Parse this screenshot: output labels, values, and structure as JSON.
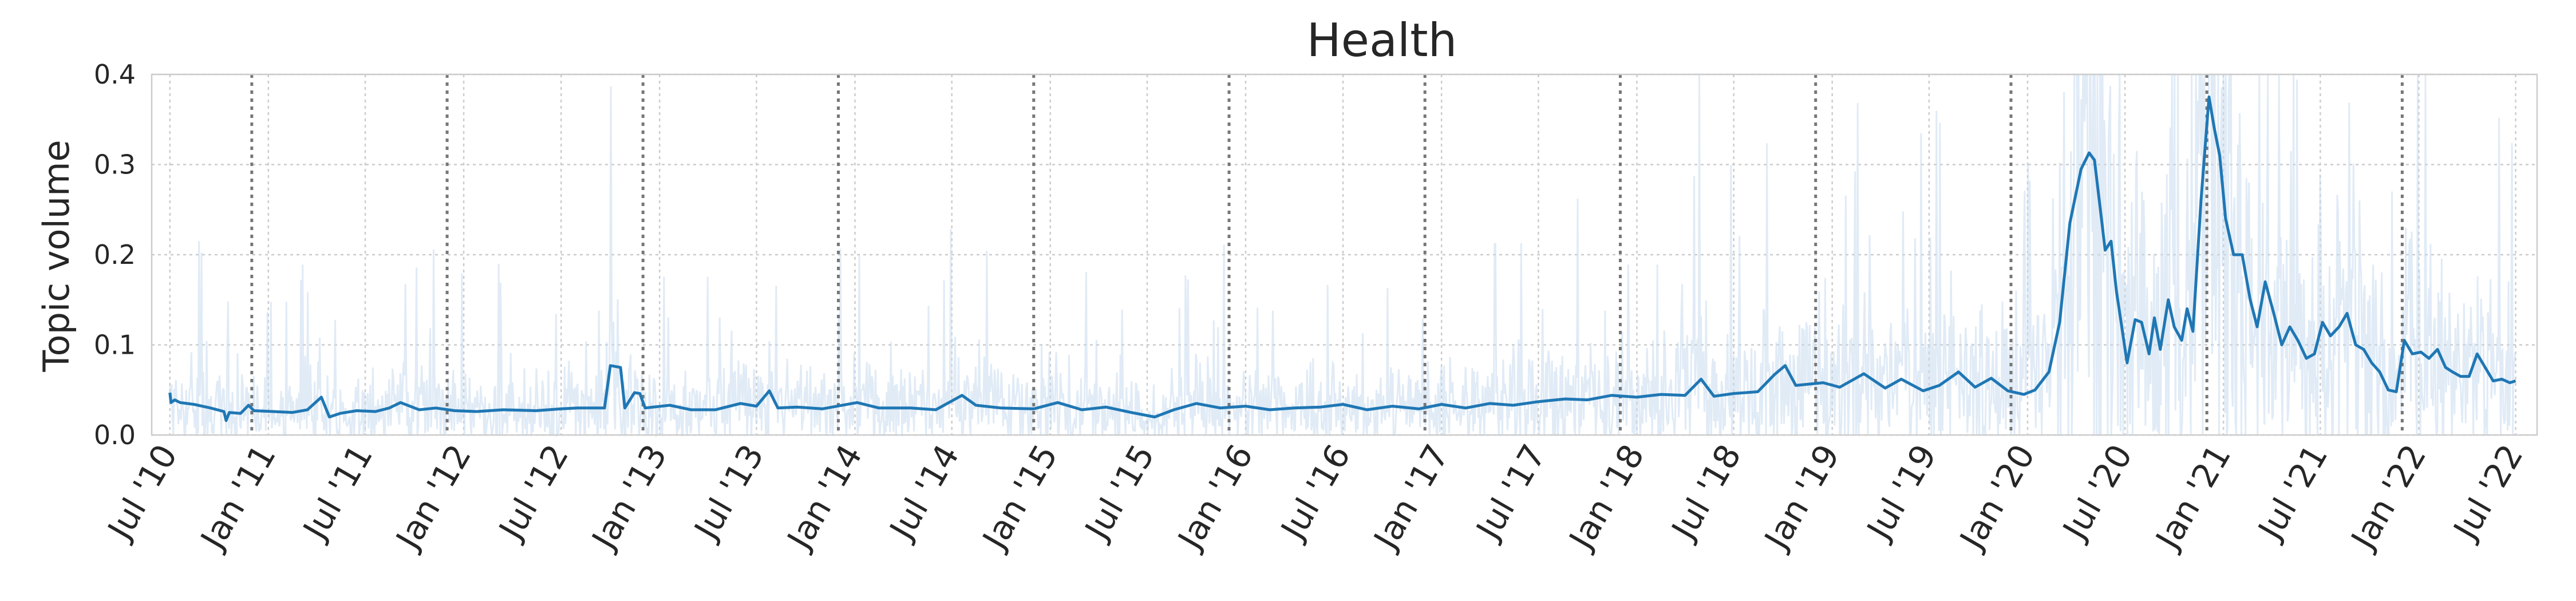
{
  "chart_data": {
    "type": "line",
    "title": "Health",
    "xlabel": "",
    "ylabel": "Topic volume",
    "ylim": [
      0,
      0.4
    ],
    "yticks": [
      0.0,
      0.1,
      0.2,
      0.3,
      0.4
    ],
    "ytick_labels": [
      "0.0",
      "0.1",
      "0.2",
      "0.3",
      "0.4"
    ],
    "xlim": [
      "2010-05-28",
      "2022-08-10"
    ],
    "xticks": [
      "2010-07-01",
      "2011-01-01",
      "2011-07-01",
      "2012-01-01",
      "2012-07-01",
      "2013-01-01",
      "2013-07-01",
      "2014-01-01",
      "2014-07-01",
      "2015-01-01",
      "2015-07-01",
      "2016-01-01",
      "2016-07-01",
      "2017-01-01",
      "2017-07-01",
      "2018-01-01",
      "2018-07-01",
      "2019-01-01",
      "2019-07-01",
      "2020-01-01",
      "2020-07-01",
      "2021-01-01",
      "2021-07-01",
      "2022-01-01",
      "2022-07-01"
    ],
    "xtick_labels": [
      "Jul '10",
      "Jan '11",
      "Jul '11",
      "Jan '12",
      "Jul '12",
      "Jan '13",
      "Jul '13",
      "Jan '14",
      "Jul '14",
      "Jan '15",
      "Jul '15",
      "Jan '16",
      "Jul '16",
      "Jan '17",
      "Jul '17",
      "Jan '18",
      "Jul '18",
      "Jan '19",
      "Jul '19",
      "Jan '20",
      "Jul '20",
      "Jan '21",
      "Jul '21",
      "Jan '22",
      "Jul '22"
    ],
    "vlines": [
      "2010-12-01",
      "2011-12-01",
      "2012-12-01",
      "2013-12-01",
      "2014-12-01",
      "2015-12-01",
      "2016-12-01",
      "2017-12-01",
      "2018-12-01",
      "2019-12-01",
      "2020-12-01",
      "2021-12-01"
    ],
    "grid": true,
    "colors": {
      "line": "#1f77b4",
      "band": "#c6dbef",
      "vline": "#777777",
      "grid": "#cccccc",
      "spine": "#cccccc"
    },
    "series": [
      {
        "values_smoothed": [
          [
            "2010-07-01",
            0.047
          ],
          [
            "2010-07-03",
            0.036
          ],
          [
            "2010-07-10",
            0.039
          ],
          [
            "2010-07-20",
            0.036
          ],
          [
            "2010-08-15",
            0.034
          ],
          [
            "2010-09-15",
            0.03
          ],
          [
            "2010-10-10",
            0.026
          ],
          [
            "2010-10-14",
            0.016
          ],
          [
            "2010-10-20",
            0.025
          ],
          [
            "2010-11-10",
            0.024
          ],
          [
            "2010-11-25",
            0.033
          ],
          [
            "2010-12-05",
            0.027
          ],
          [
            "2011-01-10",
            0.026
          ],
          [
            "2011-02-15",
            0.025
          ],
          [
            "2011-03-15",
            0.028
          ],
          [
            "2011-04-10",
            0.042
          ],
          [
            "2011-04-25",
            0.02
          ],
          [
            "2011-05-15",
            0.024
          ],
          [
            "2011-06-15",
            0.027
          ],
          [
            "2011-07-20",
            0.026
          ],
          [
            "2011-08-15",
            0.03
          ],
          [
            "2011-09-05",
            0.036
          ],
          [
            "2011-10-10",
            0.028
          ],
          [
            "2011-11-10",
            0.03
          ],
          [
            "2011-12-15",
            0.027
          ],
          [
            "2012-01-25",
            0.026
          ],
          [
            "2012-03-15",
            0.028
          ],
          [
            "2012-05-15",
            0.027
          ],
          [
            "2012-07-01",
            0.029
          ],
          [
            "2012-08-01",
            0.03
          ],
          [
            "2012-09-20",
            0.03
          ],
          [
            "2012-10-01",
            0.077
          ],
          [
            "2012-10-20",
            0.075
          ],
          [
            "2012-10-28",
            0.03
          ],
          [
            "2012-11-15",
            0.047
          ],
          [
            "2012-11-25",
            0.046
          ],
          [
            "2012-12-05",
            0.03
          ],
          [
            "2013-01-20",
            0.033
          ],
          [
            "2013-03-01",
            0.028
          ],
          [
            "2013-04-15",
            0.028
          ],
          [
            "2013-06-01",
            0.035
          ],
          [
            "2013-07-01",
            0.032
          ],
          [
            "2013-07-25",
            0.049
          ],
          [
            "2013-08-10",
            0.03
          ],
          [
            "2013-09-15",
            0.031
          ],
          [
            "2013-11-01",
            0.029
          ],
          [
            "2014-01-05",
            0.036
          ],
          [
            "2014-02-15",
            0.03
          ],
          [
            "2014-04-15",
            0.03
          ],
          [
            "2014-06-01",
            0.028
          ],
          [
            "2014-07-20",
            0.044
          ],
          [
            "2014-08-15",
            0.033
          ],
          [
            "2014-10-01",
            0.03
          ],
          [
            "2014-12-01",
            0.029
          ],
          [
            "2015-01-15",
            0.036
          ],
          [
            "2015-03-01",
            0.028
          ],
          [
            "2015-04-15",
            0.031
          ],
          [
            "2015-06-01",
            0.025
          ],
          [
            "2015-07-15",
            0.02
          ],
          [
            "2015-08-20",
            0.028
          ],
          [
            "2015-10-01",
            0.035
          ],
          [
            "2015-11-15",
            0.03
          ],
          [
            "2016-01-01",
            0.032
          ],
          [
            "2016-02-15",
            0.028
          ],
          [
            "2016-04-01",
            0.03
          ],
          [
            "2016-05-20",
            0.031
          ],
          [
            "2016-07-01",
            0.034
          ],
          [
            "2016-08-15",
            0.028
          ],
          [
            "2016-10-01",
            0.032
          ],
          [
            "2016-11-20",
            0.029
          ],
          [
            "2017-01-01",
            0.034
          ],
          [
            "2017-02-15",
            0.03
          ],
          [
            "2017-04-01",
            0.035
          ],
          [
            "2017-05-15",
            0.033
          ],
          [
            "2017-07-01",
            0.037
          ],
          [
            "2017-08-20",
            0.04
          ],
          [
            "2017-10-01",
            0.039
          ],
          [
            "2017-11-15",
            0.044
          ],
          [
            "2018-01-01",
            0.042
          ],
          [
            "2018-02-15",
            0.045
          ],
          [
            "2018-04-01",
            0.044
          ],
          [
            "2018-05-01",
            0.062
          ],
          [
            "2018-05-25",
            0.043
          ],
          [
            "2018-07-01",
            0.046
          ],
          [
            "2018-08-15",
            0.048
          ],
          [
            "2018-09-15",
            0.067
          ],
          [
            "2018-10-05",
            0.077
          ],
          [
            "2018-10-25",
            0.055
          ],
          [
            "2018-12-15",
            0.058
          ],
          [
            "2019-01-15",
            0.053
          ],
          [
            "2019-03-01",
            0.068
          ],
          [
            "2019-04-10",
            0.052
          ],
          [
            "2019-05-10",
            0.062
          ],
          [
            "2019-06-20",
            0.049
          ],
          [
            "2019-07-20",
            0.055
          ],
          [
            "2019-08-25",
            0.07
          ],
          [
            "2019-09-25",
            0.053
          ],
          [
            "2019-10-25",
            0.063
          ],
          [
            "2019-11-25",
            0.049
          ],
          [
            "2019-12-25",
            0.045
          ],
          [
            "2020-01-15",
            0.05
          ],
          [
            "2020-02-10",
            0.07
          ],
          [
            "2020-03-01",
            0.125
          ],
          [
            "2020-03-20",
            0.235
          ],
          [
            "2020-04-10",
            0.295
          ],
          [
            "2020-04-25",
            0.313
          ],
          [
            "2020-05-05",
            0.305
          ],
          [
            "2020-05-15",
            0.255
          ],
          [
            "2020-05-25",
            0.205
          ],
          [
            "2020-06-05",
            0.215
          ],
          [
            "2020-06-15",
            0.16
          ],
          [
            "2020-06-25",
            0.12
          ],
          [
            "2020-07-05",
            0.08
          ],
          [
            "2020-07-20",
            0.128
          ],
          [
            "2020-08-01",
            0.125
          ],
          [
            "2020-08-15",
            0.09
          ],
          [
            "2020-08-25",
            0.13
          ],
          [
            "2020-09-05",
            0.095
          ],
          [
            "2020-09-20",
            0.15
          ],
          [
            "2020-10-01",
            0.12
          ],
          [
            "2020-10-15",
            0.105
          ],
          [
            "2020-10-25",
            0.14
          ],
          [
            "2020-11-05",
            0.115
          ],
          [
            "2020-11-20",
            0.26
          ],
          [
            "2020-12-05",
            0.375
          ],
          [
            "2020-12-15",
            0.34
          ],
          [
            "2020-12-25",
            0.31
          ],
          [
            "2021-01-05",
            0.24
          ],
          [
            "2021-01-20",
            0.2
          ],
          [
            "2021-02-05",
            0.2
          ],
          [
            "2021-02-20",
            0.15
          ],
          [
            "2021-03-05",
            0.12
          ],
          [
            "2021-03-20",
            0.17
          ],
          [
            "2021-04-05",
            0.135
          ],
          [
            "2021-04-20",
            0.1
          ],
          [
            "2021-05-05",
            0.12
          ],
          [
            "2021-05-20",
            0.105
          ],
          [
            "2021-06-05",
            0.085
          ],
          [
            "2021-06-20",
            0.09
          ],
          [
            "2021-07-05",
            0.125
          ],
          [
            "2021-07-20",
            0.11
          ],
          [
            "2021-08-05",
            0.12
          ],
          [
            "2021-08-20",
            0.135
          ],
          [
            "2021-09-05",
            0.1
          ],
          [
            "2021-09-20",
            0.095
          ],
          [
            "2021-10-05",
            0.08
          ],
          [
            "2021-10-20",
            0.07
          ],
          [
            "2021-11-05",
            0.05
          ],
          [
            "2021-11-20",
            0.048
          ],
          [
            "2021-12-05",
            0.105
          ],
          [
            "2021-12-20",
            0.09
          ],
          [
            "2022-01-05",
            0.092
          ],
          [
            "2022-01-20",
            0.085
          ],
          [
            "2022-02-05",
            0.095
          ],
          [
            "2022-02-20",
            0.075
          ],
          [
            "2022-03-05",
            0.07
          ],
          [
            "2022-03-20",
            0.065
          ],
          [
            "2022-04-05",
            0.065
          ],
          [
            "2022-04-20",
            0.09
          ],
          [
            "2022-05-05",
            0.075
          ],
          [
            "2022-05-20",
            0.06
          ],
          [
            "2022-06-05",
            0.062
          ],
          [
            "2022-06-20",
            0.058
          ],
          [
            "2022-07-01",
            0.06
          ]
        ]
      }
    ]
  }
}
